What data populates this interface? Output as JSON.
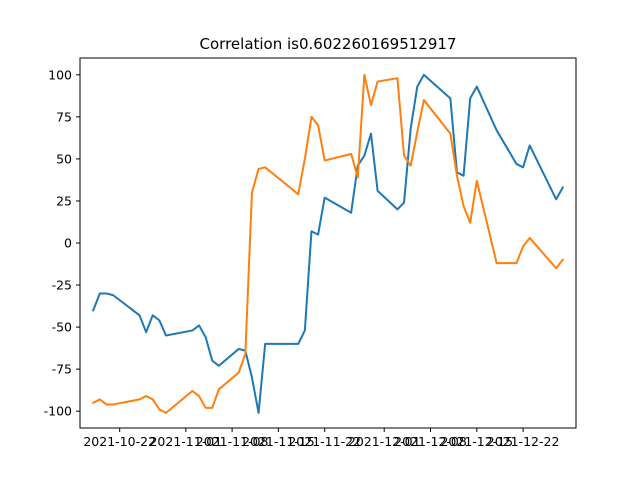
{
  "chart_data": {
    "type": "line",
    "title": "Correlation is0.602260169512917",
    "xlabel": "",
    "ylabel": "",
    "ylim": [
      -110,
      110
    ],
    "yticks": [
      100,
      75,
      50,
      25,
      0,
      -25,
      -50,
      -75,
      -100
    ],
    "xticks": [
      "2021-10-22",
      "2021-11-01",
      "2021-11-08",
      "2021-11-15",
      "2021-11-22",
      "2021-12-01",
      "2021-12-08",
      "2021-12-15",
      "2021-12-22"
    ],
    "grid": false,
    "colors": [
      "#1f77b4",
      "#ff7f0e"
    ],
    "series": [
      {
        "points": [
          [
            "2021-10-18",
            -40
          ],
          [
            "2021-10-19",
            -30
          ],
          [
            "2021-10-20",
            -30
          ],
          [
            "2021-10-21",
            -31
          ],
          [
            "2021-10-25",
            -43
          ],
          [
            "2021-10-26",
            -53
          ],
          [
            "2021-10-27",
            -43
          ],
          [
            "2021-10-28",
            -46
          ],
          [
            "2021-10-29",
            -55
          ],
          [
            "2021-11-02",
            -52
          ],
          [
            "2021-11-03",
            -49
          ],
          [
            "2021-11-04",
            -56
          ],
          [
            "2021-11-05",
            -70
          ],
          [
            "2021-11-06",
            -73
          ],
          [
            "2021-11-09",
            -63
          ],
          [
            "2021-11-10",
            -64
          ],
          [
            "2021-11-11",
            -80
          ],
          [
            "2021-11-12",
            -101
          ],
          [
            "2021-11-13",
            -60
          ],
          [
            "2021-11-18",
            -60
          ],
          [
            "2021-11-19",
            -52
          ],
          [
            "2021-11-20",
            7
          ],
          [
            "2021-11-21",
            5
          ],
          [
            "2021-11-22",
            27
          ],
          [
            "2021-11-26",
            18
          ],
          [
            "2021-11-27",
            46
          ],
          [
            "2021-11-28",
            52
          ],
          [
            "2021-11-29",
            65
          ],
          [
            "2021-11-30",
            31
          ],
          [
            "2021-12-03",
            20
          ],
          [
            "2021-12-04",
            24
          ],
          [
            "2021-12-05",
            68
          ],
          [
            "2021-12-06",
            93
          ],
          [
            "2021-12-07",
            100
          ],
          [
            "2021-12-11",
            86
          ],
          [
            "2021-12-12",
            42
          ],
          [
            "2021-12-13",
            40
          ],
          [
            "2021-12-14",
            86
          ],
          [
            "2021-12-15",
            93
          ],
          [
            "2021-12-18",
            67
          ],
          [
            "2021-12-21",
            47
          ],
          [
            "2021-12-22",
            45
          ],
          [
            "2021-12-23",
            58
          ],
          [
            "2021-12-27",
            26
          ],
          [
            "2021-12-28",
            33
          ]
        ]
      },
      {
        "points": [
          [
            "2021-10-18",
            -95
          ],
          [
            "2021-10-19",
            -93
          ],
          [
            "2021-10-20",
            -96
          ],
          [
            "2021-10-21",
            -96
          ],
          [
            "2021-10-25",
            -93
          ],
          [
            "2021-10-26",
            -91
          ],
          [
            "2021-10-27",
            -93
          ],
          [
            "2021-10-28",
            -99
          ],
          [
            "2021-10-29",
            -101
          ],
          [
            "2021-11-02",
            -88
          ],
          [
            "2021-11-03",
            -91
          ],
          [
            "2021-11-04",
            -98
          ],
          [
            "2021-11-05",
            -98
          ],
          [
            "2021-11-06",
            -87
          ],
          [
            "2021-11-09",
            -77
          ],
          [
            "2021-11-10",
            -66
          ],
          [
            "2021-11-11",
            30
          ],
          [
            "2021-11-12",
            44
          ],
          [
            "2021-11-13",
            45
          ],
          [
            "2021-11-18",
            29
          ],
          [
            "2021-11-19",
            50
          ],
          [
            "2021-11-20",
            75
          ],
          [
            "2021-11-21",
            70
          ],
          [
            "2021-11-22",
            49
          ],
          [
            "2021-11-26",
            53
          ],
          [
            "2021-11-27",
            39
          ],
          [
            "2021-11-28",
            100
          ],
          [
            "2021-11-29",
            82
          ],
          [
            "2021-11-30",
            96
          ],
          [
            "2021-12-03",
            98
          ],
          [
            "2021-12-04",
            52
          ],
          [
            "2021-12-05",
            46
          ],
          [
            "2021-12-06",
            66
          ],
          [
            "2021-12-07",
            85
          ],
          [
            "2021-12-11",
            65
          ],
          [
            "2021-12-12",
            40
          ],
          [
            "2021-12-13",
            22
          ],
          [
            "2021-12-14",
            12
          ],
          [
            "2021-12-15",
            37
          ],
          [
            "2021-12-18",
            -12
          ],
          [
            "2021-12-21",
            -12
          ],
          [
            "2021-12-22",
            -2
          ],
          [
            "2021-12-23",
            3
          ],
          [
            "2021-12-27",
            -15
          ],
          [
            "2021-12-28",
            -10
          ]
        ]
      }
    ]
  }
}
